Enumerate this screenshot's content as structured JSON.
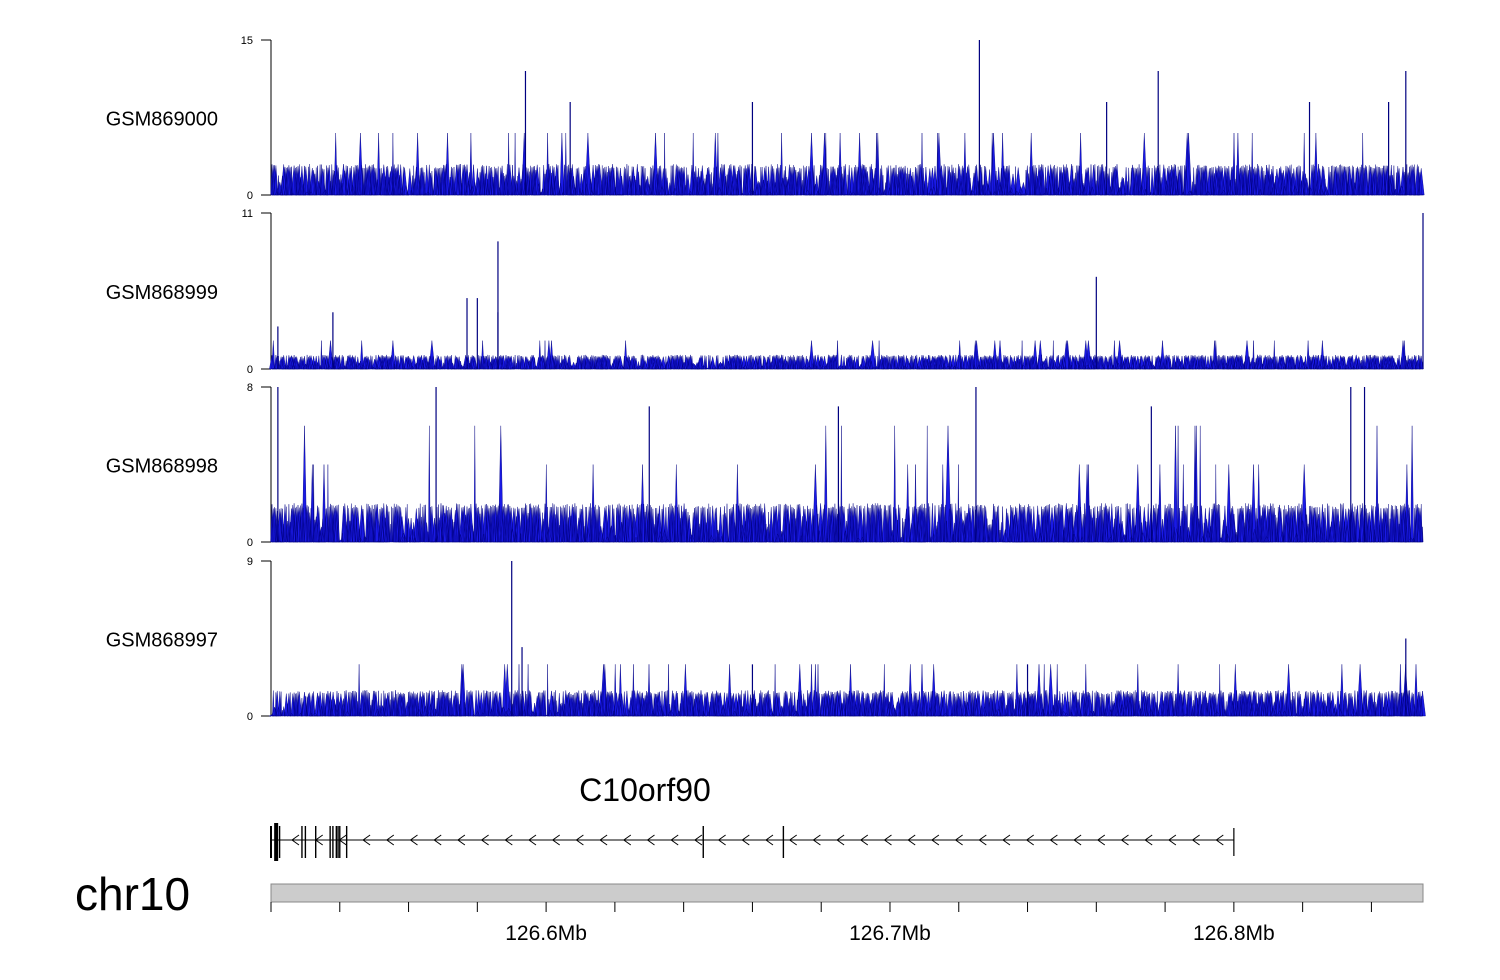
{
  "chart_data": {
    "type": "bar",
    "title": "",
    "region": {
      "chromosome": "chr10",
      "start_mb": 126.52,
      "end_mb": 126.855,
      "ticks_mb": [
        126.6,
        126.7,
        126.8
      ],
      "tick_labels": [
        "126.6Mb",
        "126.7Mb",
        "126.8Mb"
      ]
    },
    "series": [
      {
        "name": "GSM869000",
        "ylim": [
          0,
          15
        ],
        "yticks": [
          "0",
          "15"
        ],
        "baseline_levels": [
          3,
          6
        ],
        "peaks": [
          {
            "x": 126.594,
            "value": 12
          },
          {
            "x": 126.607,
            "value": 9
          },
          {
            "x": 126.66,
            "value": 9
          },
          {
            "x": 126.726,
            "value": 15
          },
          {
            "x": 126.763,
            "value": 9
          },
          {
            "x": 126.778,
            "value": 12
          },
          {
            "x": 126.822,
            "value": 9
          },
          {
            "x": 126.845,
            "value": 9
          },
          {
            "x": 126.85,
            "value": 12
          }
        ]
      },
      {
        "name": "GSM868999",
        "ylim": [
          0,
          11
        ],
        "yticks": [
          "0",
          "11"
        ],
        "baseline_levels": [
          1,
          2
        ],
        "peaks": [
          {
            "x": 126.522,
            "value": 3
          },
          {
            "x": 126.538,
            "value": 4
          },
          {
            "x": 126.577,
            "value": 5
          },
          {
            "x": 126.58,
            "value": 5
          },
          {
            "x": 126.586,
            "value": 9
          },
          {
            "x": 126.586,
            "value": 4
          },
          {
            "x": 126.76,
            "value": 6.5
          },
          {
            "x": 126.855,
            "value": 11
          }
        ]
      },
      {
        "name": "GSM868998",
        "ylim": [
          0,
          8
        ],
        "yticks": [
          "0",
          "8"
        ],
        "baseline_levels": [
          2,
          4,
          6
        ],
        "peaks": [
          {
            "x": 126.522,
            "value": 8
          },
          {
            "x": 126.568,
            "value": 8
          },
          {
            "x": 126.63,
            "value": 7
          },
          {
            "x": 126.685,
            "value": 7
          },
          {
            "x": 126.725,
            "value": 8
          },
          {
            "x": 126.776,
            "value": 7
          },
          {
            "x": 126.834,
            "value": 8
          },
          {
            "x": 126.838,
            "value": 8
          }
        ]
      },
      {
        "name": "GSM868997",
        "ylim": [
          0,
          9
        ],
        "yticks": [
          "0",
          "9"
        ],
        "baseline_levels": [
          1.5,
          3
        ],
        "peaks": [
          {
            "x": 126.59,
            "value": 9
          },
          {
            "x": 126.593,
            "value": 4
          },
          {
            "x": 126.66,
            "value": 3
          },
          {
            "x": 126.74,
            "value": 3
          },
          {
            "x": 126.85,
            "value": 4.5
          }
        ]
      }
    ],
    "gene": {
      "name": "C10orf90",
      "strand": "-",
      "start_mb": 126.52,
      "end_mb": 126.8,
      "exons_mb": [
        126.52,
        126.5215,
        126.5225,
        126.529,
        126.53,
        126.533,
        126.5372,
        126.538,
        126.539,
        126.5395,
        126.54,
        126.542,
        126.6457,
        126.669
      ]
    }
  },
  "colors": {
    "signal": "#1a1ae6",
    "signal_dark": "#000080",
    "ideogram": "#cccccc"
  }
}
